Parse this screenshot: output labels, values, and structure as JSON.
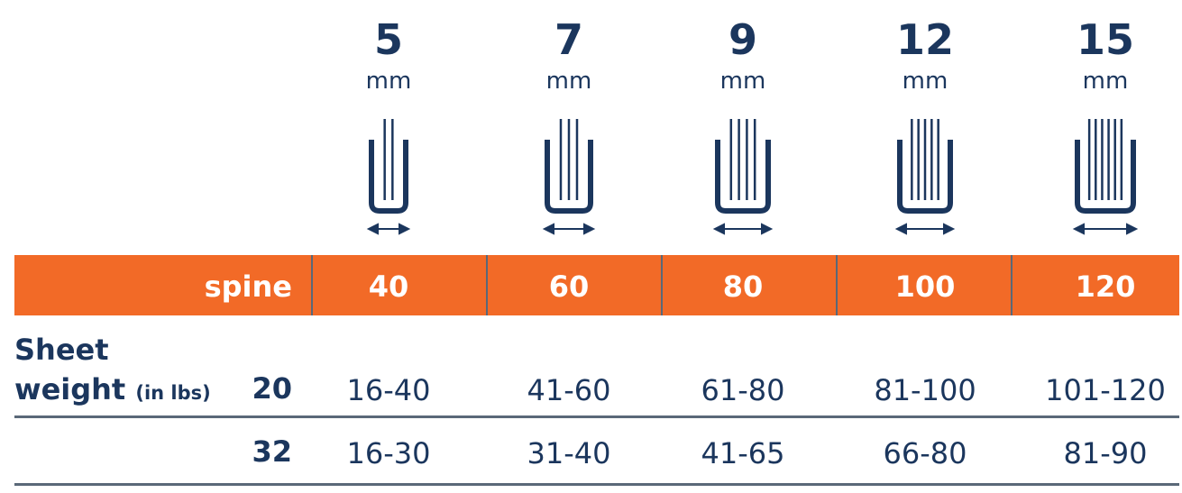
{
  "colors": {
    "navy": "#1b365d",
    "orange": "#f26a27",
    "rule": "#5a6878"
  },
  "columns": [
    {
      "size": "5",
      "unit": "mm",
      "spine": "40",
      "w20": "16-40",
      "w32": "16-30",
      "icon": "binding-spine-icon",
      "sheets_lines": 2
    },
    {
      "size": "7",
      "unit": "mm",
      "spine": "60",
      "w20": "41-60",
      "w32": "31-40",
      "icon": "binding-spine-icon",
      "sheets_lines": 3
    },
    {
      "size": "9",
      "unit": "mm",
      "spine": "80",
      "w20": "61-80",
      "w32": "41-65",
      "icon": "binding-spine-icon",
      "sheets_lines": 4
    },
    {
      "size": "12",
      "unit": "mm",
      "spine": "100",
      "w20": "81-100",
      "w32": "66-80",
      "icon": "binding-spine-icon",
      "sheets_lines": 5
    },
    {
      "size": "15",
      "unit": "mm",
      "spine": "120",
      "w20": "101-120",
      "w32": "81-90",
      "icon": "binding-spine-icon",
      "sheets_lines": 6
    }
  ],
  "spine_label": "spine",
  "row_label": {
    "line1": "Sheet",
    "line2": "weight",
    "unit": "(in lbs)"
  },
  "weights": [
    "20",
    "32"
  ]
}
